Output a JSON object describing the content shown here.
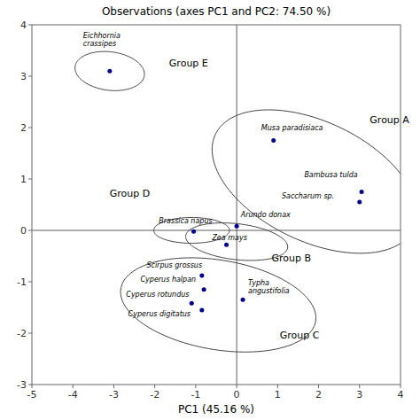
{
  "chart_data": {
    "type": "scatter",
    "title": "Observations (axes PC1 and PC2: 74.50 %)",
    "xlabel": "PC1 (45.16 %)",
    "xlim": [
      -5,
      4
    ],
    "ylim": [
      -3,
      4
    ],
    "xticks": [
      -5,
      -4,
      -3,
      -2,
      -1,
      0,
      1,
      2,
      3,
      4
    ],
    "yticks": [
      -3,
      -2,
      -1,
      0,
      1,
      2,
      3,
      4
    ],
    "grid": false,
    "color": "#00008B",
    "hlines": [
      0
    ],
    "vlines": [
      0
    ],
    "x": [
      -3.1,
      0.9,
      3.05,
      3.0,
      0.0,
      -0.25,
      -1.05,
      -0.85,
      -0.8,
      -1.1,
      -0.85,
      0.15
    ],
    "values": [
      3.1,
      1.75,
      0.75,
      0.55,
      0.08,
      -0.28,
      -0.02,
      -0.88,
      -1.15,
      -1.42,
      -1.55,
      -1.35
    ],
    "point_labels": [
      "Eichhornia\ncrassipes",
      "Musa paradisiaca",
      "Bambusa tulda",
      "Saccharum sp.",
      "Arundo donax",
      "Zea mays",
      "Brassica napus",
      "Scirpus grossus",
      "Cyperus halpan",
      "Cyperus rotundus",
      "Cyperus digitatus",
      "Typha\nangustifolia"
    ],
    "label_x": [
      -3.75,
      0.6,
      1.65,
      1.1,
      0.1,
      -0.6,
      -1.9,
      -2.2,
      -2.35,
      -2.7,
      -2.65,
      0.28
    ],
    "label_y": [
      3.55,
      1.92,
      1.0,
      0.58,
      0.22,
      -0.22,
      0.1,
      -0.75,
      -1.03,
      -1.32,
      -1.7,
      -1.25
    ],
    "ellipses": [
      {
        "label": "Group E",
        "cx": -3.1,
        "cy": 3.1,
        "width": 1.7,
        "height": 0.75,
        "angle": -5,
        "label_x": -1.65,
        "label_y": 3.25
      },
      {
        "label": "Group A",
        "cx": 1.9,
        "cy": 0.95,
        "width": 5.2,
        "height": 2.4,
        "angle": -18,
        "label_x": 3.25,
        "label_y": 2.15
      },
      {
        "label": "Group B",
        "cx": 0.0,
        "cy": -0.22,
        "width": 2.5,
        "height": 0.7,
        "angle": -5,
        "label_x": 0.85,
        "label_y": -0.55
      },
      {
        "label": "Group D",
        "cx": -1.1,
        "cy": 0.0,
        "width": 1.85,
        "height": 0.5,
        "angle": 0,
        "label_x": -3.1,
        "label_y": 0.72
      },
      {
        "label": "Group C",
        "cx": -0.45,
        "cy": -1.45,
        "width": 4.8,
        "height": 1.75,
        "angle": -7,
        "label_x": 1.05,
        "label_y": -2.05
      }
    ]
  }
}
